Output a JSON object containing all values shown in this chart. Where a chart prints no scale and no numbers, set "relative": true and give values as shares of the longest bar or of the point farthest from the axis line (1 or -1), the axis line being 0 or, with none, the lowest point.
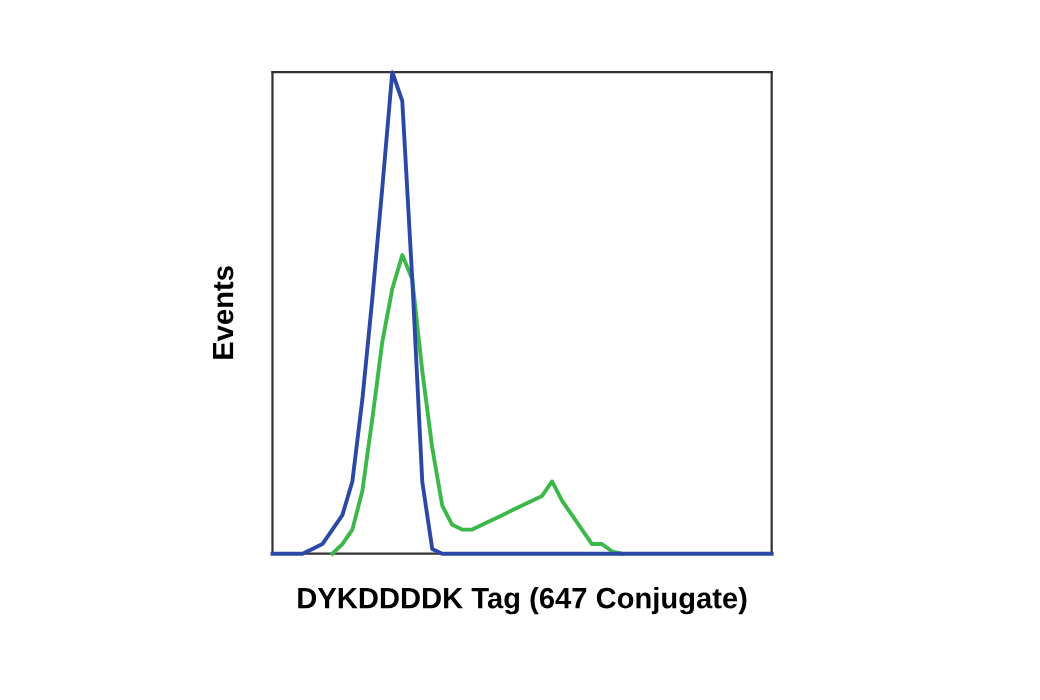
{
  "chart_data": {
    "type": "line",
    "relative": true,
    "legend": false,
    "marker": "none",
    "line_style": "solid",
    "xlabel": "DYKDDDDK Tag (647 Conjugate)",
    "ylabel": "Events",
    "categories": [
      null,
      null,
      null,
      null,
      null,
      null,
      null,
      null,
      null,
      null,
      null,
      null,
      null,
      null,
      null,
      null,
      null,
      null,
      null,
      null,
      null,
      null,
      null,
      null,
      null,
      null,
      null,
      null,
      null,
      null,
      null,
      null,
      null,
      null,
      null,
      null,
      null,
      null,
      null,
      null,
      null,
      null,
      null,
      null,
      null,
      null,
      null,
      null,
      null,
      null,
      null
    ],
    "series": [
      {
        "color": "#2b48a6",
        "values": [
          0,
          0,
          0,
          0,
          0.01,
          0.02,
          0.05,
          0.08,
          0.15,
          0.32,
          0.53,
          0.76,
          1.0,
          0.94,
          0.57,
          0.15,
          0.01,
          0,
          0,
          0,
          0,
          0,
          0,
          0,
          0,
          0,
          0,
          0,
          0,
          0,
          0,
          0,
          0,
          0,
          0,
          0,
          0,
          0,
          0,
          0,
          0,
          0,
          0,
          0,
          0,
          0,
          0,
          0,
          0,
          0,
          0
        ]
      },
      {
        "color": "#3cb84a",
        "values": [
          null,
          null,
          null,
          null,
          null,
          null,
          0,
          0.02,
          0.05,
          0.13,
          0.28,
          0.44,
          0.55,
          0.62,
          0.57,
          0.38,
          0.22,
          0.1,
          0.06,
          0.05,
          0.05,
          0.06,
          0.07,
          0.08,
          0.09,
          0.1,
          0.11,
          0.12,
          0.15,
          0.11,
          0.08,
          0.05,
          0.02,
          0.02,
          0.005,
          0,
          null,
          null,
          null,
          null,
          null,
          null,
          null,
          null,
          null,
          null,
          null,
          null,
          null,
          null,
          null
        ]
      }
    ]
  }
}
